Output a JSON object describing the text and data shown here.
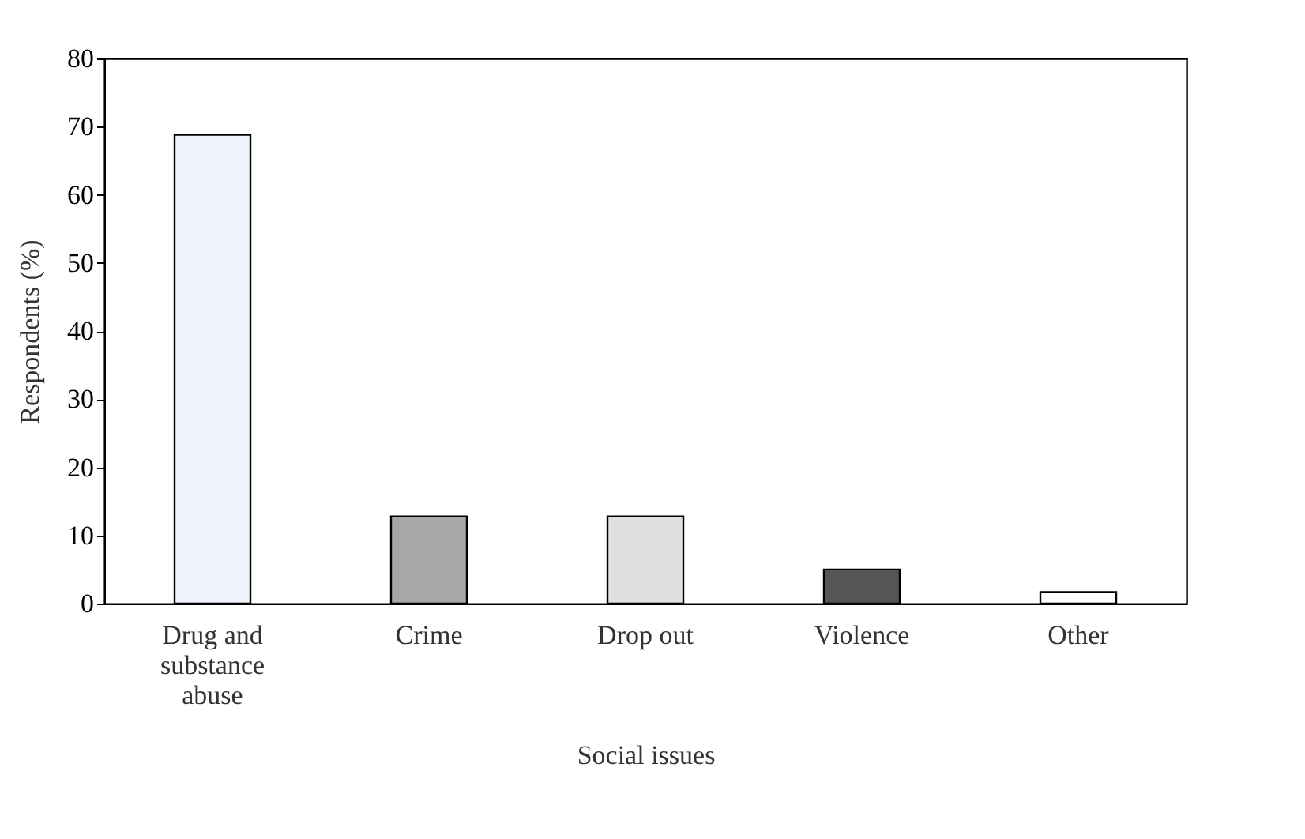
{
  "chart_data": {
    "type": "bar",
    "xlabel": "Social issues",
    "ylabel": "Respondents  (%)",
    "categories": [
      "Drug and substance abuse",
      "Crime",
      "Drop out",
      "Violence",
      "Other"
    ],
    "values": [
      68.8,
      12.8,
      12.8,
      5.0,
      1.7
    ],
    "colors": [
      "#eef3fc",
      "#a8a8a8",
      "#e0e0e0",
      "#555555",
      "#ffffff"
    ],
    "ylim": [
      0,
      80
    ],
    "yticks": [
      0,
      10,
      20,
      30,
      40,
      50,
      60,
      70,
      80
    ],
    "grid": false
  }
}
